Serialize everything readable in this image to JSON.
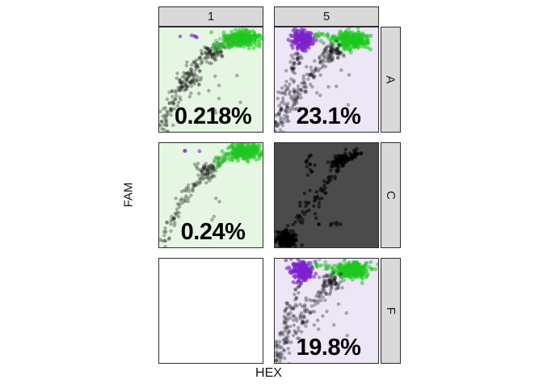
{
  "colors": {
    "background": "#ffffff",
    "strip_bg": "#d9d9d9",
    "strip_border": "#2e2e2e",
    "panel_green_bg": "#e5f6e2",
    "panel_lavender_bg": "#ece6f6",
    "panel_dark_bg": "#4b4b4b",
    "panel_white_bg": "#ffffff",
    "annotation_text": "#000000"
  },
  "chart_data": {
    "type": "scatter",
    "x_axis_label": "HEX",
    "y_axis_label": "FAM",
    "facet_col_labels": [
      "1",
      "5"
    ],
    "facet_row_labels": [
      "A",
      "C",
      "F"
    ],
    "legend": "none",
    "grid": false,
    "point_colors": {
      "black": "rgba(20,20,20,0.32)",
      "black_dark_bg": "rgba(0,0,0,0.55)",
      "green": "rgba(40,190,40,0.45)",
      "green_bright": "rgba(30,200,30,0.55)",
      "purple": "rgba(125,35,205,0.60)"
    },
    "panels": [
      {
        "id": "A-1",
        "row": "A",
        "col": "1",
        "bg": "#e5f6e2",
        "label": "0.218%",
        "seed": 11,
        "clusters": [
          {
            "type": "arc",
            "p0": [
              0.02,
              0.01
            ],
            "p1": [
              0.22,
              0.62
            ],
            "p2": [
              0.66,
              0.86
            ],
            "jitter": 0.035,
            "n": 140,
            "color": "black",
            "r": 2.3
          },
          {
            "type": "blob",
            "cx": 0.3,
            "cy": 0.5,
            "sx": 0.05,
            "sy": 0.08,
            "n": 45,
            "color": "black",
            "r": 2.3
          },
          {
            "type": "blob",
            "cx": 0.52,
            "cy": 0.76,
            "sx": 0.05,
            "sy": 0.05,
            "n": 45,
            "color": "black",
            "r": 2.3
          },
          {
            "type": "blob",
            "cx": 0.8,
            "cy": 0.9,
            "sx": 0.085,
            "sy": 0.038,
            "n": 240,
            "color": "green_bright",
            "r": 2.6
          },
          {
            "type": "arc",
            "p0": [
              0.55,
              0.82
            ],
            "p1": [
              0.65,
              0.86
            ],
            "p2": [
              0.78,
              0.9
            ],
            "jitter": 0.03,
            "n": 50,
            "color": "green",
            "r": 2.4
          },
          {
            "type": "blob",
            "cx": 0.33,
            "cy": 0.92,
            "sx": 0.055,
            "sy": 0.012,
            "n": 5,
            "color": "purple",
            "r": 2.4
          },
          {
            "type": "scatter",
            "x0": 0.45,
            "x1": 0.8,
            "y0": 0.18,
            "y1": 0.55,
            "n": 9,
            "color": "black",
            "r": 2.3
          }
        ]
      },
      {
        "id": "A-5",
        "row": "A",
        "col": "5",
        "bg": "#ece6f6",
        "label": "23.1%",
        "seed": 22,
        "clusters": [
          {
            "type": "arc",
            "p0": [
              0.04,
              0.01
            ],
            "p1": [
              0.28,
              0.55
            ],
            "p2": [
              0.62,
              0.8
            ],
            "jitter": 0.035,
            "n": 130,
            "color": "black",
            "r": 2.3
          },
          {
            "type": "arc",
            "p0": [
              0.01,
              0.0
            ],
            "p1": [
              0.1,
              0.45
            ],
            "p2": [
              0.25,
              0.78
            ],
            "jitter": 0.03,
            "n": 80,
            "color": "black",
            "r": 2.3
          },
          {
            "type": "blob",
            "cx": 0.27,
            "cy": 0.88,
            "sx": 0.048,
            "sy": 0.045,
            "n": 220,
            "color": "purple",
            "r": 2.5
          },
          {
            "type": "blob",
            "cx": 0.74,
            "cy": 0.88,
            "sx": 0.085,
            "sy": 0.04,
            "n": 260,
            "color": "green_bright",
            "r": 2.6
          },
          {
            "type": "arc",
            "p0": [
              0.38,
              0.93
            ],
            "p1": [
              0.5,
              0.91
            ],
            "p2": [
              0.62,
              0.89
            ],
            "jitter": 0.018,
            "n": 22,
            "color": "green",
            "r": 2.4
          },
          {
            "type": "blob",
            "cx": 0.56,
            "cy": 0.78,
            "sx": 0.05,
            "sy": 0.04,
            "n": 50,
            "color": "black",
            "r": 2.3
          },
          {
            "type": "scatter",
            "x0": 0.35,
            "x1": 0.75,
            "y0": 0.25,
            "y1": 0.6,
            "n": 10,
            "color": "black",
            "r": 2.3
          }
        ]
      },
      {
        "id": "C-1",
        "row": "C",
        "col": "1",
        "bg": "#e5f6e2",
        "label": "0.24%",
        "seed": 33,
        "clusters": [
          {
            "type": "arc",
            "p0": [
              0.02,
              0.01
            ],
            "p1": [
              0.22,
              0.6
            ],
            "p2": [
              0.62,
              0.84
            ],
            "jitter": 0.03,
            "n": 95,
            "color": "black",
            "r": 2.3
          },
          {
            "type": "blob",
            "cx": 0.45,
            "cy": 0.72,
            "sx": 0.06,
            "sy": 0.05,
            "n": 40,
            "color": "black",
            "r": 2.3
          },
          {
            "type": "blob",
            "cx": 0.82,
            "cy": 0.92,
            "sx": 0.075,
            "sy": 0.035,
            "n": 220,
            "color": "green_bright",
            "r": 2.6
          },
          {
            "type": "arc",
            "p0": [
              0.55,
              0.8
            ],
            "p1": [
              0.65,
              0.85
            ],
            "p2": [
              0.8,
              0.9
            ],
            "jitter": 0.028,
            "n": 45,
            "color": "green",
            "r": 2.4
          },
          {
            "type": "blob",
            "cx": 0.31,
            "cy": 0.92,
            "sx": 0.04,
            "sy": 0.01,
            "n": 3,
            "color": "purple",
            "r": 2.4
          },
          {
            "type": "scatter",
            "x0": 0.5,
            "x1": 0.75,
            "y0": 0.2,
            "y1": 0.5,
            "n": 5,
            "color": "black",
            "r": 2.3
          }
        ]
      },
      {
        "id": "C-5",
        "row": "C",
        "col": "5",
        "bg": "#4b4b4b",
        "label": null,
        "seed": 44,
        "clusters": [
          {
            "type": "blob",
            "cx": 0.1,
            "cy": 0.07,
            "sx": 0.05,
            "sy": 0.035,
            "n": 170,
            "color": "black_dark_bg",
            "r": 2.5
          },
          {
            "type": "arc",
            "p0": [
              0.1,
              0.1
            ],
            "p1": [
              0.38,
              0.5
            ],
            "p2": [
              0.7,
              0.84
            ],
            "jitter": 0.035,
            "n": 75,
            "color": "black_dark_bg",
            "r": 2.3
          },
          {
            "type": "arc",
            "p0": [
              0.55,
              0.8
            ],
            "p1": [
              0.68,
              0.87
            ],
            "p2": [
              0.82,
              0.9
            ],
            "jitter": 0.025,
            "n": 80,
            "color": "black_dark_bg",
            "r": 2.4
          },
          {
            "type": "blob",
            "cx": 0.34,
            "cy": 0.8,
            "sx": 0.02,
            "sy": 0.055,
            "n": 14,
            "color": "black_dark_bg",
            "r": 2.3
          },
          {
            "type": "blob",
            "cx": 0.58,
            "cy": 0.22,
            "sx": 0.03,
            "sy": 0.012,
            "n": 6,
            "color": "black_dark_bg",
            "r": 2.3
          },
          {
            "type": "scatter",
            "x0": 0.2,
            "x1": 0.5,
            "y0": 0.2,
            "y1": 0.6,
            "n": 8,
            "color": "black_dark_bg",
            "r": 2.3
          }
        ]
      },
      {
        "id": "F-1",
        "row": "F",
        "col": "1",
        "bg": "#ffffff",
        "label": null,
        "seed": 55,
        "clusters": []
      },
      {
        "id": "F-5",
        "row": "F",
        "col": "5",
        "bg": "#ece6f6",
        "label": "19.8%",
        "seed": 66,
        "clusters": [
          {
            "type": "arc",
            "p0": [
              0.04,
              0.01
            ],
            "p1": [
              0.28,
              0.55
            ],
            "p2": [
              0.62,
              0.8
            ],
            "jitter": 0.035,
            "n": 125,
            "color": "black",
            "r": 2.3
          },
          {
            "type": "arc",
            "p0": [
              0.01,
              0.0
            ],
            "p1": [
              0.1,
              0.45
            ],
            "p2": [
              0.25,
              0.78
            ],
            "jitter": 0.03,
            "n": 75,
            "color": "black",
            "r": 2.3
          },
          {
            "type": "blob",
            "cx": 0.26,
            "cy": 0.89,
            "sx": 0.045,
            "sy": 0.045,
            "n": 210,
            "color": "purple",
            "r": 2.5
          },
          {
            "type": "blob",
            "cx": 0.75,
            "cy": 0.89,
            "sx": 0.085,
            "sy": 0.038,
            "n": 250,
            "color": "green_bright",
            "r": 2.6
          },
          {
            "type": "arc",
            "p0": [
              0.36,
              0.94
            ],
            "p1": [
              0.5,
              0.92
            ],
            "p2": [
              0.62,
              0.89
            ],
            "jitter": 0.02,
            "n": 24,
            "color": "green",
            "r": 2.4
          },
          {
            "type": "blob",
            "cx": 0.55,
            "cy": 0.78,
            "sx": 0.05,
            "sy": 0.04,
            "n": 45,
            "color": "black",
            "r": 2.3
          },
          {
            "type": "scatter",
            "x0": 0.35,
            "x1": 0.72,
            "y0": 0.25,
            "y1": 0.6,
            "n": 9,
            "color": "black",
            "r": 2.3
          }
        ]
      }
    ]
  }
}
